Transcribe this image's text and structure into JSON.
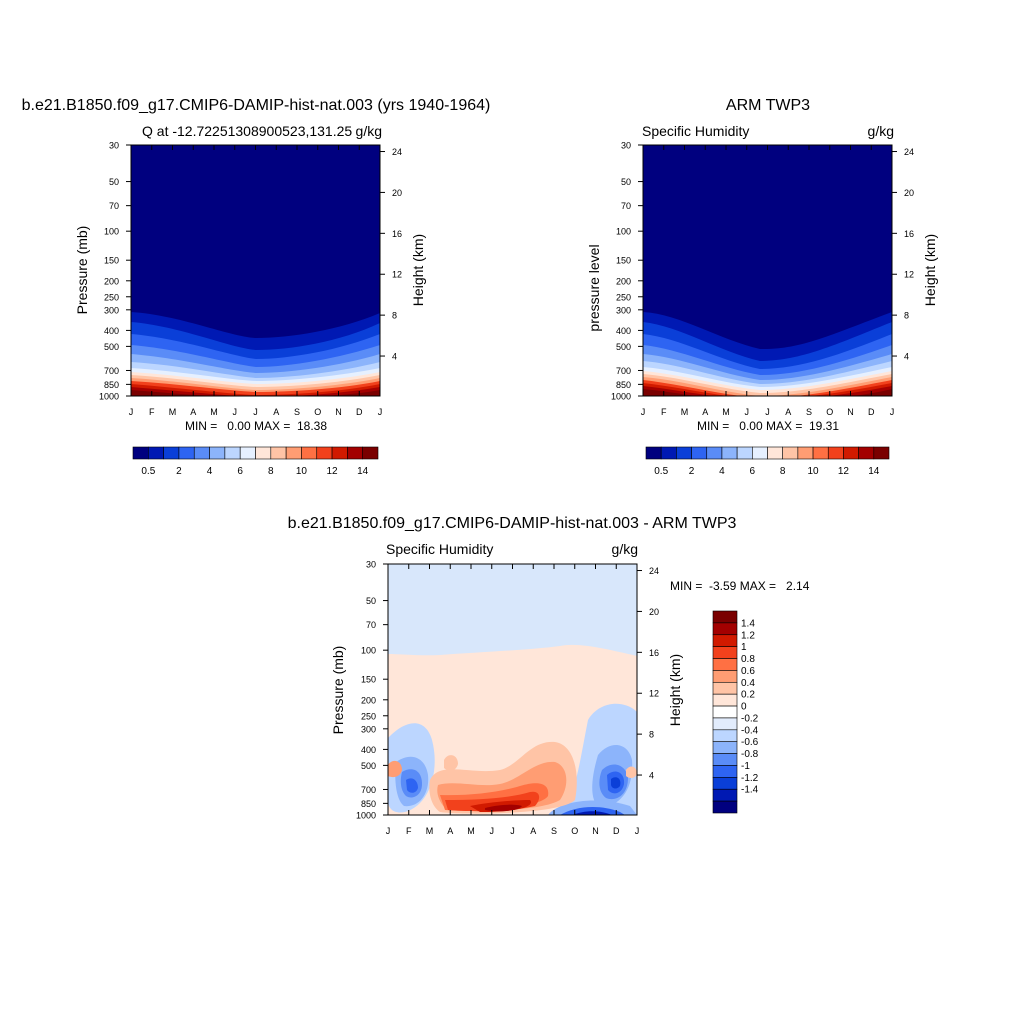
{
  "chart_data": [
    {
      "type": "heatmap",
      "title": "b.e21.B1850.f09_g17.CMIP6-DAMIP-hist-nat.003 (yrs 1940-1964)",
      "subtitle_left": "Q at -12.72251308900523,131.25",
      "subtitle_right": "g/kg",
      "ylabel": "Pressure (mb)",
      "ylabel_right": "Height (km)",
      "x": [
        "J",
        "F",
        "M",
        "A",
        "M",
        "J",
        "J",
        "A",
        "S",
        "O",
        "N",
        "D",
        "J"
      ],
      "y": [
        30,
        50,
        70,
        100,
        150,
        200,
        250,
        300,
        400,
        500,
        700,
        850,
        1000
      ],
      "y_right": [
        24,
        20,
        16,
        12,
        8,
        4
      ],
      "ylim": [
        1000,
        30
      ],
      "y_scale": "log",
      "stats": "MIN =   0.00 MAX =  18.38",
      "levels": [
        "0.5",
        "2",
        "4",
        "6",
        "8",
        "10",
        "12",
        "14"
      ],
      "colorbar": "horizontal-bottom"
    },
    {
      "type": "heatmap",
      "title": "ARM TWP3",
      "subtitle_left": "Specific Humidity",
      "subtitle_right": "g/kg",
      "ylabel": "pressure level",
      "ylabel_right": "Height (km)",
      "x": [
        "J",
        "F",
        "M",
        "A",
        "M",
        "J",
        "J",
        "A",
        "S",
        "O",
        "N",
        "D",
        "J"
      ],
      "y": [
        30,
        50,
        70,
        100,
        150,
        200,
        250,
        300,
        400,
        500,
        700,
        850,
        1000
      ],
      "y_right": [
        24,
        20,
        16,
        12,
        8,
        4
      ],
      "ylim": [
        1000,
        30
      ],
      "y_scale": "log",
      "stats": "MIN =   0.00 MAX =  19.31",
      "levels": [
        "0.5",
        "2",
        "4",
        "6",
        "8",
        "10",
        "12",
        "14"
      ],
      "colorbar": "horizontal-bottom"
    },
    {
      "type": "heatmap",
      "title": "b.e21.B1850.f09_g17.CMIP6-DAMIP-hist-nat.003 - ARM TWP3",
      "subtitle_left": "Specific Humidity",
      "subtitle_right": "g/kg",
      "ylabel": "Pressure (mb)",
      "ylabel_right": "Height (km)",
      "x": [
        "J",
        "F",
        "M",
        "A",
        "M",
        "J",
        "J",
        "A",
        "S",
        "O",
        "N",
        "D",
        "J"
      ],
      "y": [
        30,
        50,
        70,
        100,
        150,
        200,
        250,
        300,
        400,
        500,
        700,
        850,
        1000
      ],
      "y_right": [
        24,
        20,
        16,
        12,
        8,
        4
      ],
      "ylim": [
        1000,
        30
      ],
      "y_scale": "log",
      "stats": "MIN =  -3.59 MAX =   2.14",
      "levels": [
        "1.4",
        "1.2",
        "1",
        "0.8",
        "0.6",
        "0.4",
        "0.2",
        "0",
        "-0.2",
        "-0.4",
        "-0.6",
        "-0.8",
        "-1",
        "-1.2",
        "-1.4"
      ],
      "colorbar": "vertical-right"
    }
  ],
  "colors": {
    "abs_scale": [
      "#00007f",
      "#0019b3",
      "#0a3fd8",
      "#2e64f2",
      "#5a8cf7",
      "#8cb4fb",
      "#bcd6ff",
      "#e6f0ff",
      "#ffe6d9",
      "#ffc4a6",
      "#ff9d73",
      "#ff7043",
      "#f2411c",
      "#d11a00",
      "#a30000",
      "#7a0000"
    ],
    "diff_scale": [
      "#00007f",
      "#0019b3",
      "#0a3fd8",
      "#2e64f2",
      "#5a8cf7",
      "#8cb4fb",
      "#bcd6ff",
      "#e2ecfc",
      "#ffffff",
      "#ffe6d9",
      "#ffc4a6",
      "#ff9d73",
      "#ff7043",
      "#f2411c",
      "#d11a00",
      "#a30000",
      "#7a0000"
    ]
  }
}
